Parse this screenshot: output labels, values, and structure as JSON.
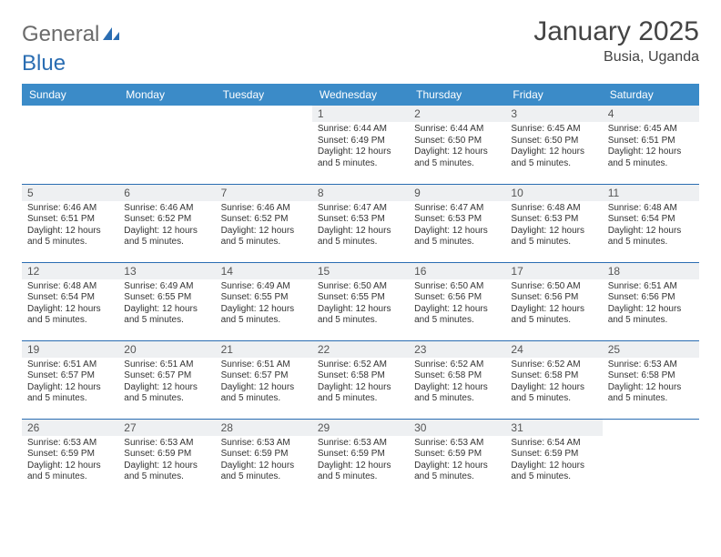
{
  "logo": {
    "part1": "General",
    "part2": "Blue"
  },
  "title": "January 2025",
  "subtitle": "Busia, Uganda",
  "colors": {
    "header_bg": "#3b8bc8",
    "header_text": "#ffffff",
    "divider": "#2a6db2",
    "daynum_bg": "#eef0f2",
    "body_text": "#333333",
    "logo_gray": "#6b6b6b",
    "logo_blue": "#2a6db2",
    "page_bg": "#ffffff"
  },
  "typography": {
    "title_fontsize": 30,
    "subtitle_fontsize": 16,
    "dayheader_fontsize": 12,
    "cell_fontsize": 10
  },
  "day_headers": [
    "Sunday",
    "Monday",
    "Tuesday",
    "Wednesday",
    "Thursday",
    "Friday",
    "Saturday"
  ],
  "weeks": [
    [
      {
        "n": "",
        "sr": "",
        "ss": "",
        "dl": ""
      },
      {
        "n": "",
        "sr": "",
        "ss": "",
        "dl": ""
      },
      {
        "n": "",
        "sr": "",
        "ss": "",
        "dl": ""
      },
      {
        "n": "1",
        "sr": "Sunrise: 6:44 AM",
        "ss": "Sunset: 6:49 PM",
        "dl": "Daylight: 12 hours and 5 minutes."
      },
      {
        "n": "2",
        "sr": "Sunrise: 6:44 AM",
        "ss": "Sunset: 6:50 PM",
        "dl": "Daylight: 12 hours and 5 minutes."
      },
      {
        "n": "3",
        "sr": "Sunrise: 6:45 AM",
        "ss": "Sunset: 6:50 PM",
        "dl": "Daylight: 12 hours and 5 minutes."
      },
      {
        "n": "4",
        "sr": "Sunrise: 6:45 AM",
        "ss": "Sunset: 6:51 PM",
        "dl": "Daylight: 12 hours and 5 minutes."
      }
    ],
    [
      {
        "n": "5",
        "sr": "Sunrise: 6:46 AM",
        "ss": "Sunset: 6:51 PM",
        "dl": "Daylight: 12 hours and 5 minutes."
      },
      {
        "n": "6",
        "sr": "Sunrise: 6:46 AM",
        "ss": "Sunset: 6:52 PM",
        "dl": "Daylight: 12 hours and 5 minutes."
      },
      {
        "n": "7",
        "sr": "Sunrise: 6:46 AM",
        "ss": "Sunset: 6:52 PM",
        "dl": "Daylight: 12 hours and 5 minutes."
      },
      {
        "n": "8",
        "sr": "Sunrise: 6:47 AM",
        "ss": "Sunset: 6:53 PM",
        "dl": "Daylight: 12 hours and 5 minutes."
      },
      {
        "n": "9",
        "sr": "Sunrise: 6:47 AM",
        "ss": "Sunset: 6:53 PM",
        "dl": "Daylight: 12 hours and 5 minutes."
      },
      {
        "n": "10",
        "sr": "Sunrise: 6:48 AM",
        "ss": "Sunset: 6:53 PM",
        "dl": "Daylight: 12 hours and 5 minutes."
      },
      {
        "n": "11",
        "sr": "Sunrise: 6:48 AM",
        "ss": "Sunset: 6:54 PM",
        "dl": "Daylight: 12 hours and 5 minutes."
      }
    ],
    [
      {
        "n": "12",
        "sr": "Sunrise: 6:48 AM",
        "ss": "Sunset: 6:54 PM",
        "dl": "Daylight: 12 hours and 5 minutes."
      },
      {
        "n": "13",
        "sr": "Sunrise: 6:49 AM",
        "ss": "Sunset: 6:55 PM",
        "dl": "Daylight: 12 hours and 5 minutes."
      },
      {
        "n": "14",
        "sr": "Sunrise: 6:49 AM",
        "ss": "Sunset: 6:55 PM",
        "dl": "Daylight: 12 hours and 5 minutes."
      },
      {
        "n": "15",
        "sr": "Sunrise: 6:50 AM",
        "ss": "Sunset: 6:55 PM",
        "dl": "Daylight: 12 hours and 5 minutes."
      },
      {
        "n": "16",
        "sr": "Sunrise: 6:50 AM",
        "ss": "Sunset: 6:56 PM",
        "dl": "Daylight: 12 hours and 5 minutes."
      },
      {
        "n": "17",
        "sr": "Sunrise: 6:50 AM",
        "ss": "Sunset: 6:56 PM",
        "dl": "Daylight: 12 hours and 5 minutes."
      },
      {
        "n": "18",
        "sr": "Sunrise: 6:51 AM",
        "ss": "Sunset: 6:56 PM",
        "dl": "Daylight: 12 hours and 5 minutes."
      }
    ],
    [
      {
        "n": "19",
        "sr": "Sunrise: 6:51 AM",
        "ss": "Sunset: 6:57 PM",
        "dl": "Daylight: 12 hours and 5 minutes."
      },
      {
        "n": "20",
        "sr": "Sunrise: 6:51 AM",
        "ss": "Sunset: 6:57 PM",
        "dl": "Daylight: 12 hours and 5 minutes."
      },
      {
        "n": "21",
        "sr": "Sunrise: 6:51 AM",
        "ss": "Sunset: 6:57 PM",
        "dl": "Daylight: 12 hours and 5 minutes."
      },
      {
        "n": "22",
        "sr": "Sunrise: 6:52 AM",
        "ss": "Sunset: 6:58 PM",
        "dl": "Daylight: 12 hours and 5 minutes."
      },
      {
        "n": "23",
        "sr": "Sunrise: 6:52 AM",
        "ss": "Sunset: 6:58 PM",
        "dl": "Daylight: 12 hours and 5 minutes."
      },
      {
        "n": "24",
        "sr": "Sunrise: 6:52 AM",
        "ss": "Sunset: 6:58 PM",
        "dl": "Daylight: 12 hours and 5 minutes."
      },
      {
        "n": "25",
        "sr": "Sunrise: 6:53 AM",
        "ss": "Sunset: 6:58 PM",
        "dl": "Daylight: 12 hours and 5 minutes."
      }
    ],
    [
      {
        "n": "26",
        "sr": "Sunrise: 6:53 AM",
        "ss": "Sunset: 6:59 PM",
        "dl": "Daylight: 12 hours and 5 minutes."
      },
      {
        "n": "27",
        "sr": "Sunrise: 6:53 AM",
        "ss": "Sunset: 6:59 PM",
        "dl": "Daylight: 12 hours and 5 minutes."
      },
      {
        "n": "28",
        "sr": "Sunrise: 6:53 AM",
        "ss": "Sunset: 6:59 PM",
        "dl": "Daylight: 12 hours and 5 minutes."
      },
      {
        "n": "29",
        "sr": "Sunrise: 6:53 AM",
        "ss": "Sunset: 6:59 PM",
        "dl": "Daylight: 12 hours and 5 minutes."
      },
      {
        "n": "30",
        "sr": "Sunrise: 6:53 AM",
        "ss": "Sunset: 6:59 PM",
        "dl": "Daylight: 12 hours and 5 minutes."
      },
      {
        "n": "31",
        "sr": "Sunrise: 6:54 AM",
        "ss": "Sunset: 6:59 PM",
        "dl": "Daylight: 12 hours and 5 minutes."
      },
      {
        "n": "",
        "sr": "",
        "ss": "",
        "dl": ""
      }
    ]
  ]
}
